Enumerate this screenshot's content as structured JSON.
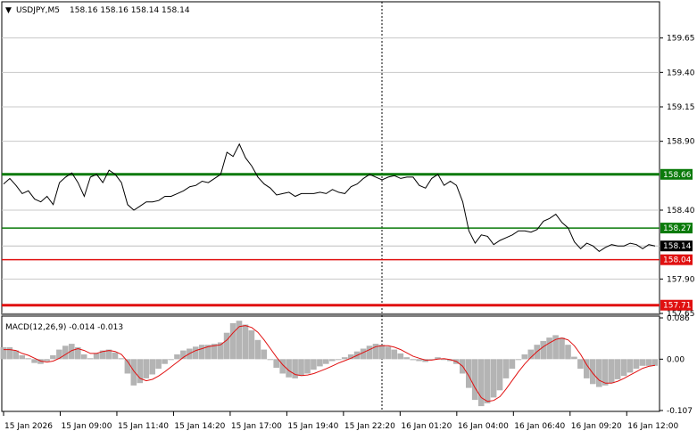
{
  "title_bar": {
    "symbol_label": "USDJPY,M5",
    "ohlc": "158.16 158.16 158.14 158.14",
    "menu_glyph": "▼"
  },
  "macd_panel": {
    "label": "MACD(12,26,9) -0.014 -0.013"
  },
  "colors": {
    "background": "#ffffff",
    "price_line": "#000000",
    "green_level": "#0a7a0a",
    "red_level": "#e01010",
    "histogram": "#b4b4b4",
    "signal": "#e01010",
    "grid": "#c8c8c8"
  },
  "chart_data": [
    {
      "type": "line",
      "name": "main",
      "ylim": [
        157.65,
        159.9
      ],
      "y_ticks": [
        "159.65",
        "159.40",
        "159.15",
        "158.90",
        "158.40",
        "157.90",
        "157.65"
      ],
      "levels": [
        {
          "label": "158.66",
          "value": 158.66,
          "color": "green",
          "thick": true
        },
        {
          "label": "158.27",
          "value": 158.27,
          "color": "green",
          "thick": false
        },
        {
          "label": "158.04",
          "value": 158.04,
          "color": "red",
          "thick": false
        },
        {
          "label": "157.71",
          "value": 157.71,
          "color": "red",
          "thick": true
        }
      ],
      "current_price": {
        "label": "158.14",
        "value": 158.14
      },
      "time_labels": [
        "15 Jan 2026",
        "15 Jan 09:00",
        "15 Jan 11:40",
        "15 Jan 14:20",
        "15 Jan 17:00",
        "15 Jan 19:40",
        "15 Jan 22:20",
        "16 Jan 01:20",
        "16 Jan 04:00",
        "16 Jan 06:40",
        "16 Jan 09:20",
        "16 Jan 12:00"
      ],
      "series": [
        {
          "values": [
            158.59,
            158.63,
            158.58,
            158.52,
            158.54,
            158.48,
            158.46,
            158.5,
            158.44,
            158.6,
            158.64,
            158.67,
            158.6,
            158.5,
            158.64,
            158.66,
            158.6,
            158.69,
            158.66,
            158.6,
            158.44,
            158.4,
            158.43,
            158.46,
            158.46,
            158.47,
            158.5,
            158.5,
            158.52,
            158.54,
            158.57,
            158.58,
            158.61,
            158.6,
            158.63,
            158.66,
            158.82,
            158.79,
            158.88,
            158.78,
            158.72,
            158.64,
            158.59,
            158.56,
            158.51,
            158.52,
            158.53,
            158.5,
            158.52,
            158.52,
            158.52,
            158.53,
            158.52,
            158.55,
            158.53,
            158.52,
            158.57,
            158.59,
            158.63,
            158.66,
            158.64,
            158.62,
            158.64,
            158.65,
            158.63,
            158.64,
            158.64,
            158.58,
            158.56,
            158.63,
            158.66,
            158.58,
            158.61,
            158.58,
            158.46,
            158.25,
            158.16,
            158.22,
            158.21,
            158.15,
            158.18,
            158.2,
            158.22,
            158.25,
            158.25,
            158.24,
            158.26,
            158.32,
            158.34,
            158.37,
            158.31,
            158.27,
            158.17,
            158.12,
            158.16,
            158.14,
            158.1,
            158.13,
            158.15,
            158.14,
            158.14,
            158.16,
            158.15,
            158.12,
            158.15,
            158.14
          ]
        }
      ]
    },
    {
      "type": "bar",
      "name": "MACD(12,26,9)",
      "ylim": [
        -0.107,
        0.086
      ],
      "y_ticks": [
        "0.086",
        "0.00",
        "-0.107"
      ],
      "series": [
        {
          "name": "MACD",
          "values": [
            0.025,
            0.025,
            0.018,
            0.008,
            0.002,
            -0.008,
            -0.01,
            -0.004,
            0.008,
            0.02,
            0.028,
            0.032,
            0.025,
            0.01,
            0.002,
            0.012,
            0.018,
            0.02,
            0.014,
            0.002,
            -0.03,
            -0.055,
            -0.05,
            -0.04,
            -0.032,
            -0.02,
            -0.01,
            0.0,
            0.01,
            0.018,
            0.022,
            0.026,
            0.03,
            0.03,
            0.032,
            0.035,
            0.055,
            0.075,
            0.08,
            0.072,
            0.06,
            0.04,
            0.02,
            0.0,
            -0.018,
            -0.03,
            -0.038,
            -0.04,
            -0.035,
            -0.03,
            -0.022,
            -0.015,
            -0.01,
            -0.004,
            0.0,
            0.004,
            0.01,
            0.016,
            0.022,
            0.028,
            0.032,
            0.03,
            0.026,
            0.02,
            0.012,
            0.004,
            -0.002,
            -0.004,
            -0.006,
            0.0,
            0.004,
            0.0,
            -0.004,
            -0.01,
            -0.03,
            -0.06,
            -0.085,
            -0.098,
            -0.092,
            -0.08,
            -0.065,
            -0.04,
            -0.02,
            0.0,
            0.01,
            0.02,
            0.03,
            0.038,
            0.045,
            0.05,
            0.045,
            0.03,
            0.005,
            -0.02,
            -0.04,
            -0.052,
            -0.058,
            -0.055,
            -0.05,
            -0.042,
            -0.035,
            -0.028,
            -0.02,
            -0.014,
            -0.014,
            -0.014
          ]
        },
        {
          "name": "Signal",
          "values": [
            0.02,
            0.02,
            0.018,
            0.012,
            0.008,
            0.002,
            -0.004,
            -0.006,
            -0.004,
            0.002,
            0.01,
            0.018,
            0.022,
            0.018,
            0.012,
            0.012,
            0.016,
            0.018,
            0.016,
            0.01,
            -0.005,
            -0.025,
            -0.04,
            -0.045,
            -0.042,
            -0.035,
            -0.026,
            -0.016,
            -0.006,
            0.004,
            0.012,
            0.018,
            0.022,
            0.026,
            0.028,
            0.03,
            0.04,
            0.055,
            0.068,
            0.07,
            0.066,
            0.056,
            0.04,
            0.022,
            0.004,
            -0.012,
            -0.024,
            -0.032,
            -0.034,
            -0.033,
            -0.03,
            -0.025,
            -0.02,
            -0.014,
            -0.008,
            -0.003,
            0.002,
            0.008,
            0.014,
            0.02,
            0.026,
            0.028,
            0.028,
            0.025,
            0.02,
            0.013,
            0.006,
            0.002,
            -0.002,
            -0.002,
            0.0,
            0.001,
            -0.001,
            -0.005,
            -0.015,
            -0.035,
            -0.06,
            -0.08,
            -0.088,
            -0.086,
            -0.078,
            -0.062,
            -0.044,
            -0.026,
            -0.01,
            0.004,
            0.016,
            0.026,
            0.034,
            0.041,
            0.044,
            0.04,
            0.028,
            0.01,
            -0.012,
            -0.03,
            -0.044,
            -0.05,
            -0.05,
            -0.046,
            -0.04,
            -0.033,
            -0.026,
            -0.019,
            -0.015,
            -0.013
          ]
        }
      ]
    }
  ]
}
